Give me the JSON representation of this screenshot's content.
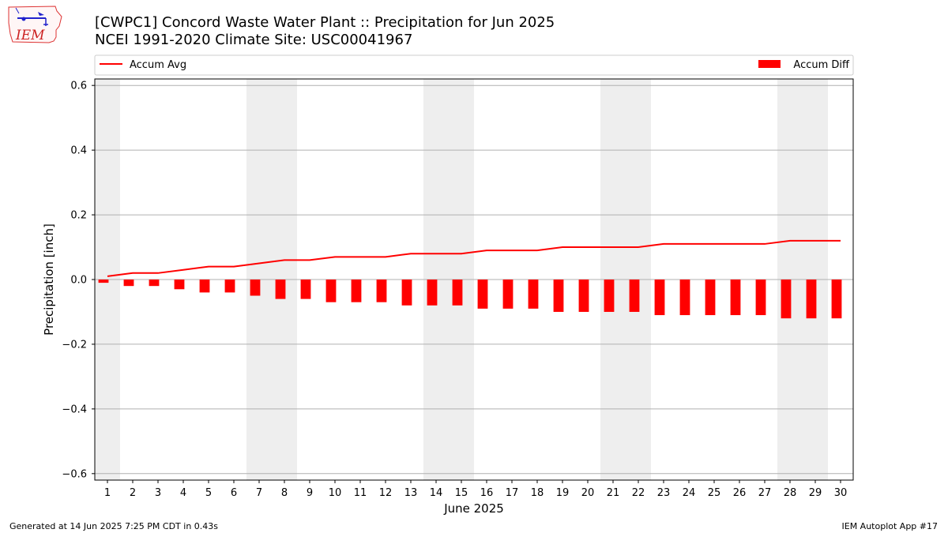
{
  "header": {
    "title_line1": "[CWPC1] Concord Waste Water Plant :: Precipitation for Jun 2025",
    "title_line2": "NCEI 1991-2020 Climate Site: USC00041967"
  },
  "logo": {
    "text": "IEM",
    "icon": "iem-iowa-logo"
  },
  "footer": {
    "generated": "Generated at 14 Jun 2025 7:25 PM CDT in 0.43s",
    "app": "IEM Autoplot App #17"
  },
  "colors": {
    "series": "#ff0000",
    "weekend_band": "#eeeeee",
    "grid": "#b0b0b0"
  },
  "chart_data": {
    "type": "bar",
    "xlabel": "June 2025",
    "ylabel": "Precipitation [inch]",
    "ylim": [
      -0.62,
      0.62
    ],
    "yticks": [
      0.6,
      0.4,
      0.2,
      0.0,
      -0.2,
      -0.4,
      -0.6
    ],
    "ytick_labels": [
      "0.6",
      "0.4",
      "0.2",
      "0.0",
      "−0.2",
      "−0.4",
      "−0.6"
    ],
    "x": [
      1,
      2,
      3,
      4,
      5,
      6,
      7,
      8,
      9,
      10,
      11,
      12,
      13,
      14,
      15,
      16,
      17,
      18,
      19,
      20,
      21,
      22,
      23,
      24,
      25,
      26,
      27,
      28,
      29,
      30
    ],
    "xtick_labels": [
      "1",
      "2",
      "3",
      "4",
      "5",
      "6",
      "7",
      "8",
      "9",
      "10",
      "11",
      "12",
      "13",
      "14",
      "15",
      "16",
      "17",
      "18",
      "19",
      "20",
      "21",
      "22",
      "23",
      "24",
      "25",
      "26",
      "27",
      "28",
      "29",
      "30"
    ],
    "grid": "horizontal",
    "legend": {
      "accum_avg_label": "Accum Avg",
      "accum_diff_label": "Accum Diff",
      "placement": "top"
    },
    "weekend_days": [
      1,
      7,
      8,
      14,
      15,
      21,
      22,
      28,
      29
    ],
    "series": [
      {
        "name": "Accum Avg",
        "type": "line",
        "values": [
          0.01,
          0.02,
          0.02,
          0.03,
          0.04,
          0.04,
          0.05,
          0.06,
          0.06,
          0.07,
          0.07,
          0.07,
          0.08,
          0.08,
          0.08,
          0.09,
          0.09,
          0.09,
          0.1,
          0.1,
          0.1,
          0.1,
          0.11,
          0.11,
          0.11,
          0.11,
          0.11,
          0.12,
          0.12,
          0.12
        ]
      },
      {
        "name": "Accum Diff",
        "type": "bar",
        "values": [
          -0.01,
          -0.02,
          -0.02,
          -0.03,
          -0.04,
          -0.04,
          -0.05,
          -0.06,
          -0.06,
          -0.07,
          -0.07,
          -0.07,
          -0.08,
          -0.08,
          -0.08,
          -0.09,
          -0.09,
          -0.09,
          -0.1,
          -0.1,
          -0.1,
          -0.1,
          -0.11,
          -0.11,
          -0.11,
          -0.11,
          -0.11,
          -0.12,
          -0.12,
          -0.12
        ]
      }
    ]
  }
}
